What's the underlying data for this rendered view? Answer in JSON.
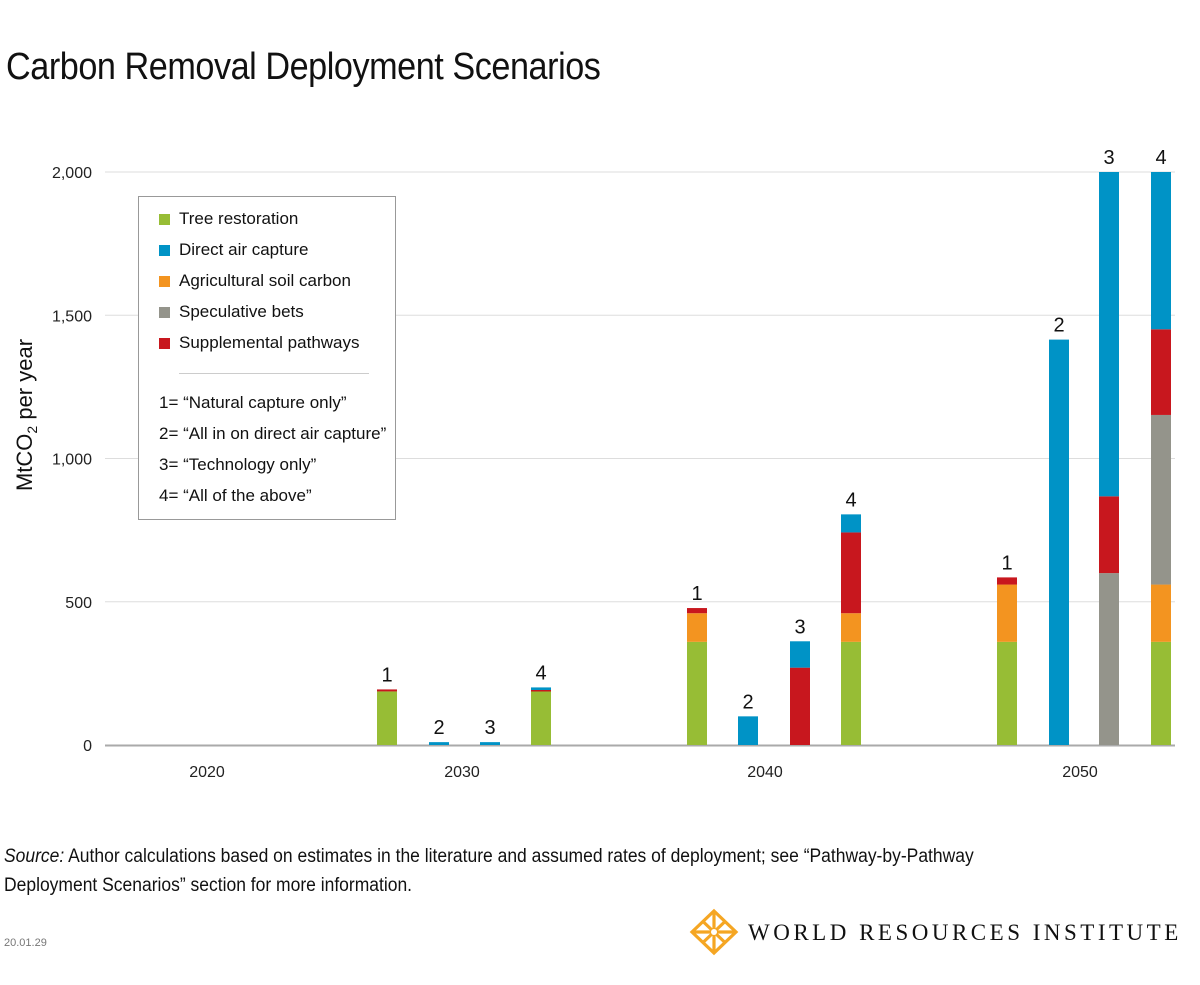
{
  "title": "Carbon Removal Deployment Scenarios",
  "legend": {
    "items": [
      {
        "label": "Tree restoration",
        "color": "#97bd35"
      },
      {
        "label": "Direct air capture",
        "color": "#0093c6"
      },
      {
        "label": "Agricultural soil carbon",
        "color": "#f39420"
      },
      {
        "label": "Speculative bets",
        "color": "#94948b"
      },
      {
        "label": "Supplemental pathways",
        "color": "#c8171e"
      }
    ],
    "scenarios": [
      "1= “Natural capture only”",
      "2= “All in on direct air capture”",
      "3= “Technology only”",
      "4= “All of the above”"
    ]
  },
  "chart_data": {
    "type": "bar",
    "stacked": true,
    "title": "Carbon Removal Deployment Scenarios",
    "ylabel": "MtCO2 per year",
    "ylim": [
      0,
      2000
    ],
    "yticks": [
      "0",
      "500",
      "1,000",
      "1,500",
      "2,000"
    ],
    "ytick_values": [
      0,
      500,
      1000,
      1500,
      2000
    ],
    "categories": [
      "2020",
      "2030",
      "2040",
      "2050"
    ],
    "scenario_labels": [
      "1",
      "2",
      "3",
      "4"
    ],
    "series_order": [
      "Tree restoration",
      "Agricultural soil carbon",
      "Speculative bets",
      "Supplemental pathways",
      "Direct air capture"
    ],
    "groups": [
      {
        "year": "2020",
        "bars": []
      },
      {
        "year": "2030",
        "bars": [
          {
            "scenario": "1",
            "Tree restoration": 187,
            "Agricultural soil carbon": 0,
            "Speculative bets": 0,
            "Supplemental pathways": 7,
            "Direct air capture": 0
          },
          {
            "scenario": "2",
            "Tree restoration": 0,
            "Agricultural soil carbon": 0,
            "Speculative bets": 0,
            "Supplemental pathways": 0,
            "Direct air capture": 10
          },
          {
            "scenario": "3",
            "Tree restoration": 0,
            "Agricultural soil carbon": 0,
            "Speculative bets": 0,
            "Supplemental pathways": 0,
            "Direct air capture": 10
          },
          {
            "scenario": "4",
            "Tree restoration": 187,
            "Agricultural soil carbon": 0,
            "Speculative bets": 0,
            "Supplemental pathways": 5,
            "Direct air capture": 9
          }
        ]
      },
      {
        "year": "2040",
        "bars": [
          {
            "scenario": "1",
            "Tree restoration": 360,
            "Agricultural soil carbon": 100,
            "Speculative bets": 0,
            "Supplemental pathways": 18,
            "Direct air capture": 0
          },
          {
            "scenario": "2",
            "Tree restoration": 0,
            "Agricultural soil carbon": 0,
            "Speculative bets": 0,
            "Supplemental pathways": 0,
            "Direct air capture": 100
          },
          {
            "scenario": "3",
            "Tree restoration": 0,
            "Agricultural soil carbon": 0,
            "Speculative bets": 0,
            "Supplemental pathways": 270,
            "Direct air capture": 92
          },
          {
            "scenario": "4",
            "Tree restoration": 360,
            "Agricultural soil carbon": 100,
            "Speculative bets": 0,
            "Supplemental pathways": 282,
            "Direct air capture": 63
          }
        ]
      },
      {
        "year": "2050",
        "bars": [
          {
            "scenario": "1",
            "Tree restoration": 360,
            "Agricultural soil carbon": 200,
            "Speculative bets": 0,
            "Supplemental pathways": 25,
            "Direct air capture": 0
          },
          {
            "scenario": "2",
            "Tree restoration": 0,
            "Agricultural soil carbon": 0,
            "Speculative bets": 0,
            "Supplemental pathways": 0,
            "Direct air capture": 1415
          },
          {
            "scenario": "3",
            "Tree restoration": 0,
            "Agricultural soil carbon": 0,
            "Speculative bets": 600,
            "Supplemental pathways": 268,
            "Direct air capture": 1132
          },
          {
            "scenario": "4",
            "Tree restoration": 360,
            "Agricultural soil carbon": 200,
            "Speculative bets": 592,
            "Supplemental pathways": 299,
            "Direct air capture": 549
          }
        ]
      }
    ],
    "grid": true,
    "legend_position": "top-left"
  },
  "footer": {
    "source_label": "Source:",
    "source_text": " Author calculations based on estimates in the literature and assumed rates of deployment; see “Pathway-by-Pathway Deployment Scenarios” section for more information.",
    "date": "20.01.29",
    "org": "WORLD RESOURCES INSTITUTE"
  }
}
